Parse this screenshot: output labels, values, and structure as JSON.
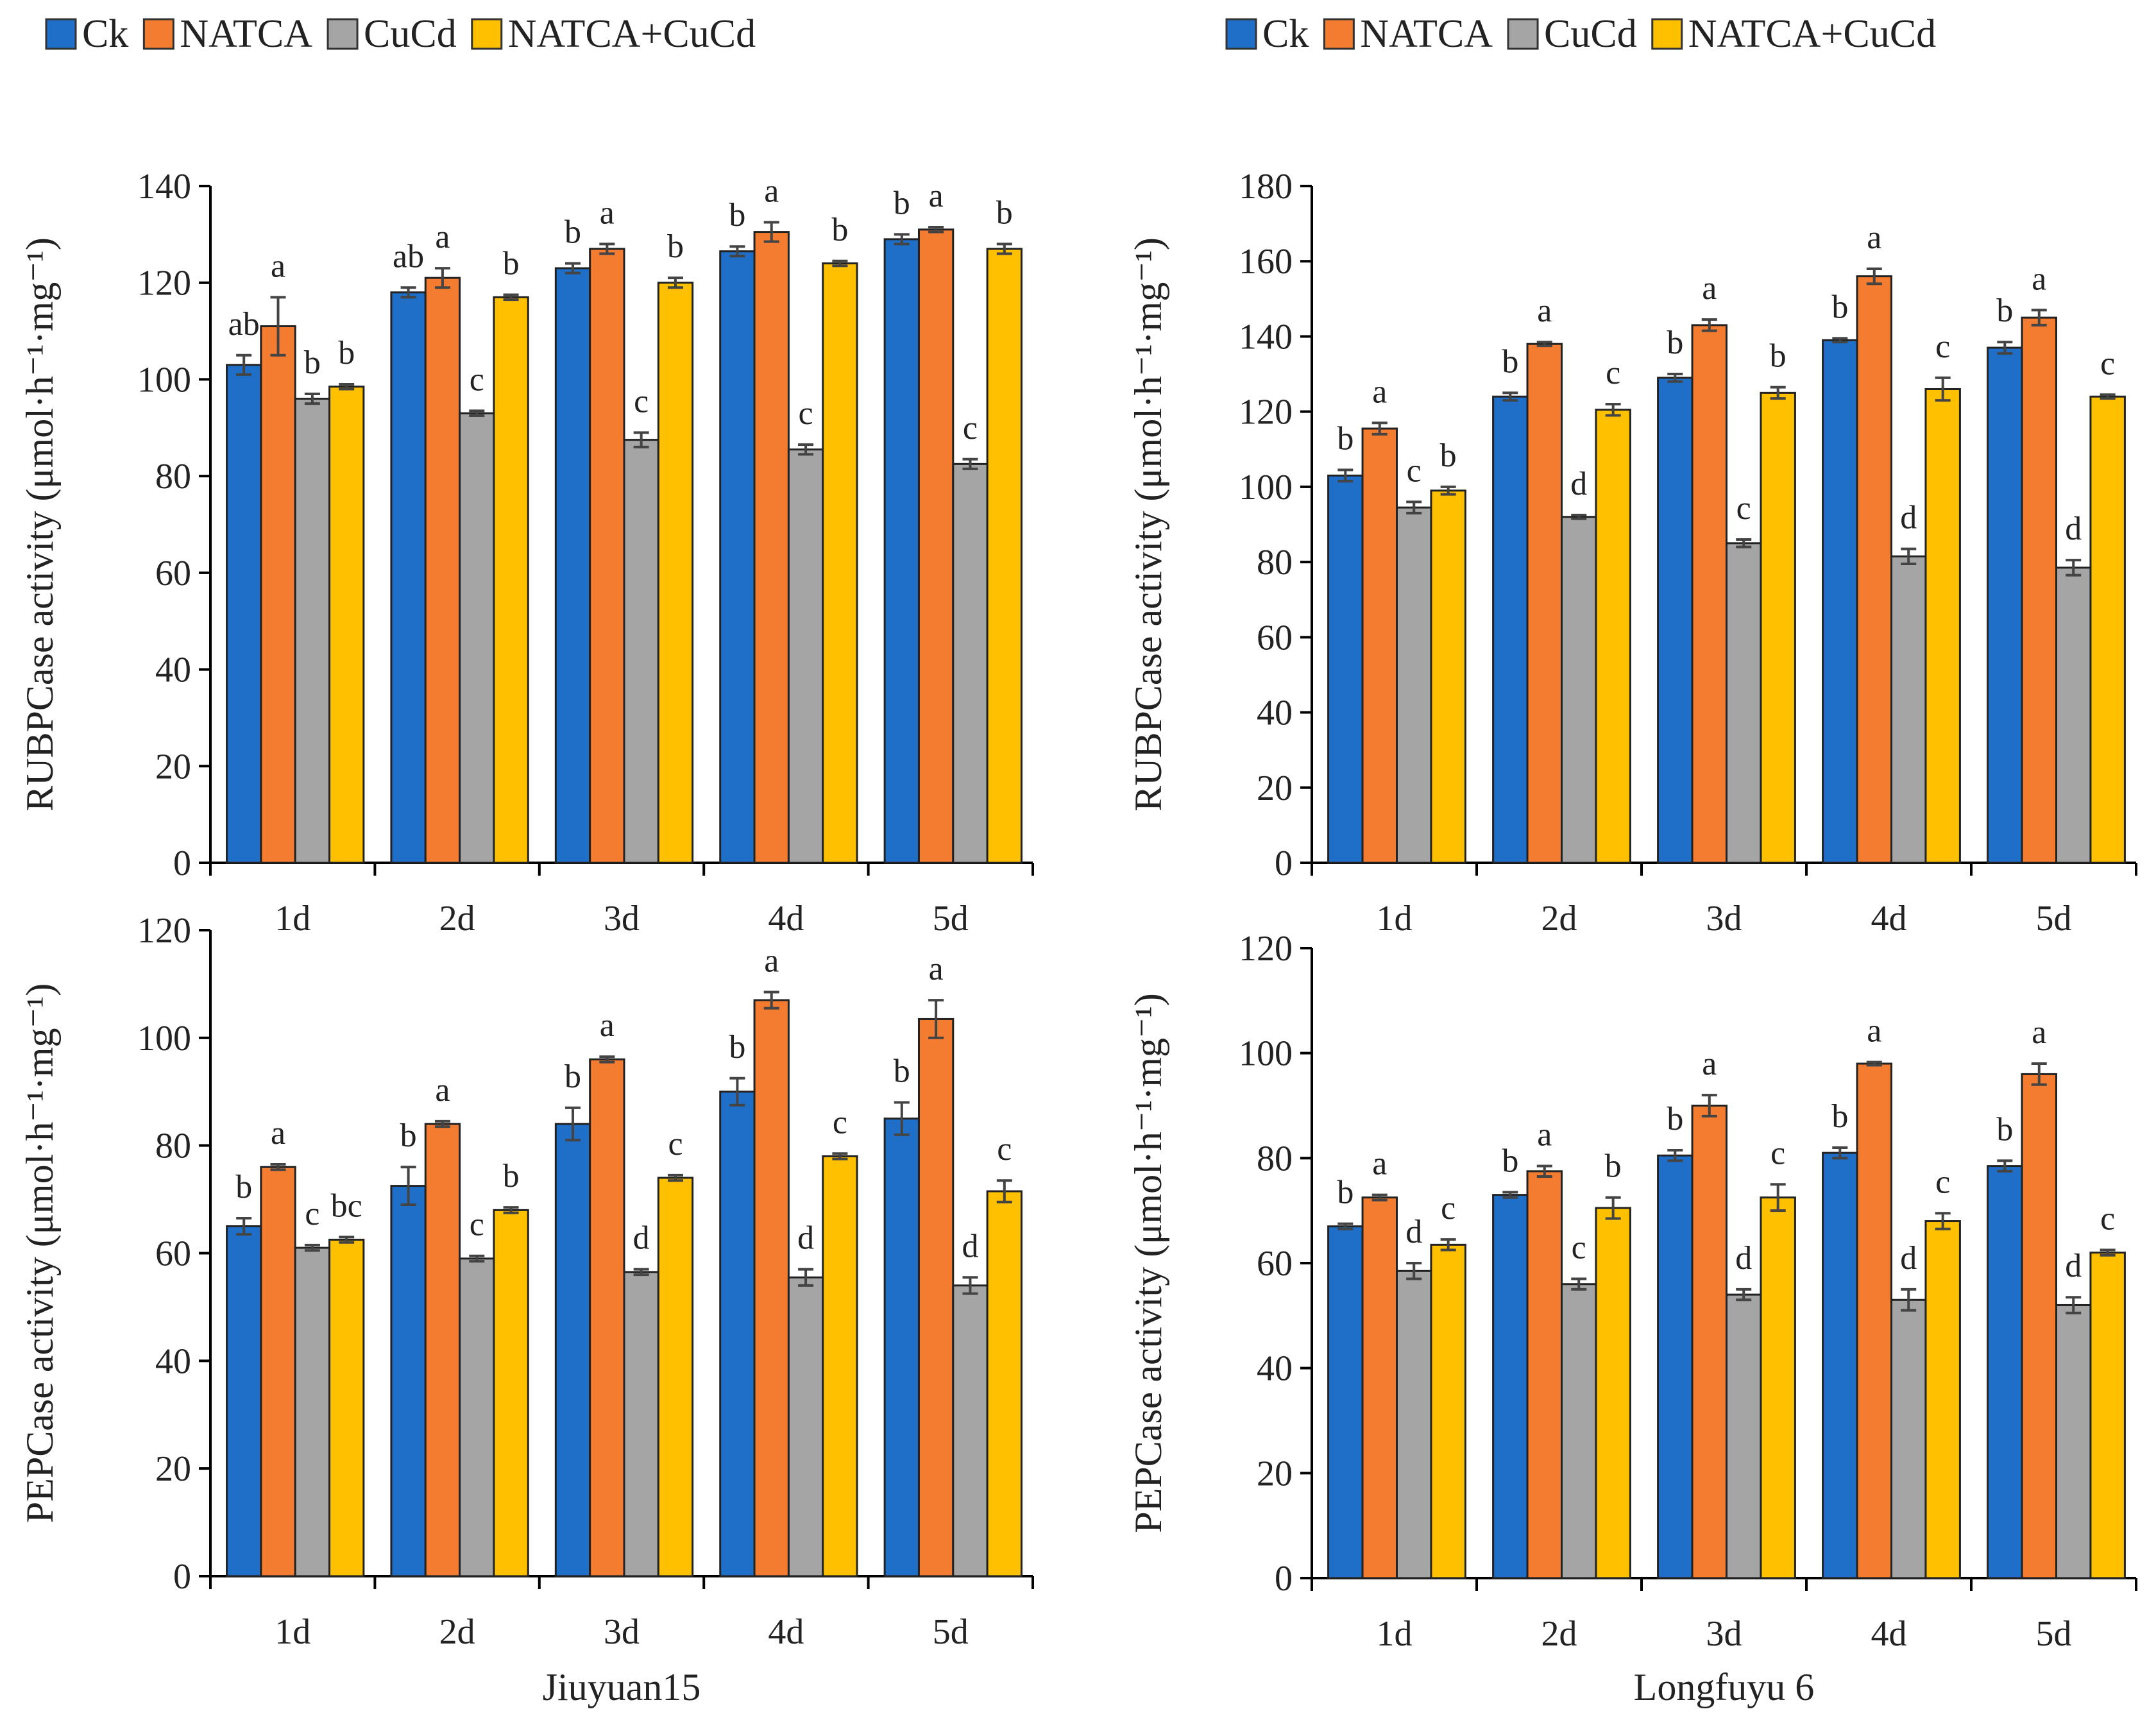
{
  "legend": {
    "items": [
      {
        "label": "Ck",
        "color": "#1f6fc9"
      },
      {
        "label": "NATCA",
        "color": "#f47c30"
      },
      {
        "label": "CuCd",
        "color": "#a5a5a5"
      },
      {
        "label": "NATCA+CuCd",
        "color": "#ffc000"
      }
    ]
  },
  "chart_data": [
    {
      "id": "jiuyuan-rubpcase",
      "type": "bar",
      "ylabel": "RUBPCase activity (μmol·h⁻¹·mg⁻¹)",
      "xlabel": "",
      "categories": [
        "1d",
        "2d",
        "3d",
        "4d",
        "5d"
      ],
      "ylim": [
        0,
        140
      ],
      "yticks": [
        0,
        20,
        40,
        60,
        80,
        100,
        120,
        140
      ],
      "series": [
        {
          "name": "Ck",
          "values": [
            103,
            118,
            123,
            126.5,
            129
          ],
          "errors": [
            2,
            1,
            1,
            1,
            1
          ],
          "labels": [
            "ab",
            "ab",
            "b",
            "b",
            "b"
          ]
        },
        {
          "name": "NATCA",
          "values": [
            111,
            121,
            127,
            130.5,
            131
          ],
          "errors": [
            6,
            2,
            1,
            2,
            0.5
          ],
          "labels": [
            "a",
            "a",
            "a",
            "a",
            "a"
          ]
        },
        {
          "name": "CuCd",
          "values": [
            96,
            93,
            87.5,
            85.5,
            82.5
          ],
          "errors": [
            1,
            0.5,
            1.5,
            1,
            1
          ],
          "labels": [
            "b",
            "c",
            "c",
            "c",
            "c"
          ]
        },
        {
          "name": "NATCA+CuCd",
          "values": [
            98.5,
            117,
            120,
            124,
            127
          ],
          "errors": [
            0.5,
            0.5,
            1,
            0.5,
            1
          ],
          "labels": [
            "b",
            "b",
            "b",
            "b",
            "b"
          ]
        }
      ]
    },
    {
      "id": "longfuyu-rubpcase",
      "type": "bar",
      "ylabel": "RUBPCase activity (μmol·h⁻¹·mg⁻¹)",
      "xlabel": "",
      "categories": [
        "1d",
        "2d",
        "3d",
        "4d",
        "5d"
      ],
      "ylim": [
        0,
        180
      ],
      "yticks": [
        0,
        20,
        40,
        60,
        80,
        100,
        120,
        140,
        160,
        180
      ],
      "series": [
        {
          "name": "Ck",
          "values": [
            103,
            124,
            129,
            139,
            137
          ],
          "errors": [
            1.5,
            1,
            1,
            0.5,
            1.5
          ],
          "labels": [
            "b",
            "b",
            "b",
            "b",
            "b"
          ]
        },
        {
          "name": "NATCA",
          "values": [
            115.5,
            138,
            143,
            156,
            145
          ],
          "errors": [
            1.5,
            0.5,
            1.5,
            2,
            2
          ],
          "labels": [
            "a",
            "a",
            "a",
            "a",
            "a"
          ]
        },
        {
          "name": "CuCd",
          "values": [
            94.5,
            92,
            85,
            81.5,
            78.5
          ],
          "errors": [
            1.5,
            0.5,
            1,
            2,
            2
          ],
          "labels": [
            "c",
            "d",
            "c",
            "d",
            "d"
          ]
        },
        {
          "name": "NATCA+CuCd",
          "values": [
            99,
            120.5,
            125,
            126,
            124
          ],
          "errors": [
            1,
            1.5,
            1.5,
            3,
            0.5
          ],
          "labels": [
            "b",
            "c",
            "b",
            "c",
            "c"
          ]
        }
      ]
    },
    {
      "id": "jiuyuan-pepcase",
      "type": "bar",
      "ylabel": "PEPCase activity (μmol·h⁻¹·mg⁻¹)",
      "xlabel": "Jiuyuan15",
      "categories": [
        "1d",
        "2d",
        "3d",
        "4d",
        "5d"
      ],
      "ylim": [
        0,
        120
      ],
      "yticks": [
        0,
        20,
        40,
        60,
        80,
        100,
        120
      ],
      "series": [
        {
          "name": "Ck",
          "values": [
            65,
            72.5,
            84,
            90,
            85
          ],
          "errors": [
            1.5,
            3.5,
            3,
            2.5,
            3
          ],
          "labels": [
            "b",
            "b",
            "b",
            "b",
            "b"
          ]
        },
        {
          "name": "NATCA",
          "values": [
            76,
            84,
            96,
            107,
            103.5
          ],
          "errors": [
            0.5,
            0.5,
            0.5,
            1.5,
            3.5
          ],
          "labels": [
            "a",
            "a",
            "a",
            "a",
            "a"
          ]
        },
        {
          "name": "CuCd",
          "values": [
            61,
            59,
            56.5,
            55.5,
            54
          ],
          "errors": [
            0.5,
            0.5,
            0.5,
            1.5,
            1.5
          ],
          "labels": [
            "c",
            "c",
            "d",
            "d",
            "d"
          ]
        },
        {
          "name": "NATCA+CuCd",
          "values": [
            62.5,
            68,
            74,
            78,
            71.5
          ],
          "errors": [
            0.5,
            0.5,
            0.5,
            0.5,
            2
          ],
          "labels": [
            "bc",
            "b",
            "c",
            "c",
            "c"
          ]
        }
      ]
    },
    {
      "id": "longfuyu-pepcase",
      "type": "bar",
      "ylabel": "PEPCase activity (μmol·h⁻¹·mg⁻¹)",
      "xlabel": "Longfuyu 6",
      "categories": [
        "1d",
        "2d",
        "3d",
        "4d",
        "5d"
      ],
      "ylim": [
        0,
        120
      ],
      "yticks": [
        0,
        20,
        40,
        60,
        80,
        100,
        120
      ],
      "series": [
        {
          "name": "Ck",
          "values": [
            67,
            73,
            80.5,
            81,
            78.5
          ],
          "errors": [
            0.5,
            0.5,
            1,
            1,
            1
          ],
          "labels": [
            "b",
            "b",
            "b",
            "b",
            "b"
          ]
        },
        {
          "name": "NATCA",
          "values": [
            72.5,
            77.5,
            90,
            98,
            96
          ],
          "errors": [
            0.5,
            1,
            2,
            0.3,
            2
          ],
          "labels": [
            "a",
            "a",
            "a",
            "a",
            "a"
          ]
        },
        {
          "name": "CuCd",
          "values": [
            58.5,
            56,
            54,
            53,
            52
          ],
          "errors": [
            1.5,
            1,
            1,
            2,
            1.5
          ],
          "labels": [
            "d",
            "c",
            "d",
            "d",
            "d"
          ]
        },
        {
          "name": "NATCA+CuCd",
          "values": [
            63.5,
            70.5,
            72.5,
            68,
            62
          ],
          "errors": [
            1,
            2,
            2.5,
            1.5,
            0.5
          ],
          "labels": [
            "c",
            "b",
            "c",
            "c",
            "c"
          ]
        }
      ]
    }
  ]
}
